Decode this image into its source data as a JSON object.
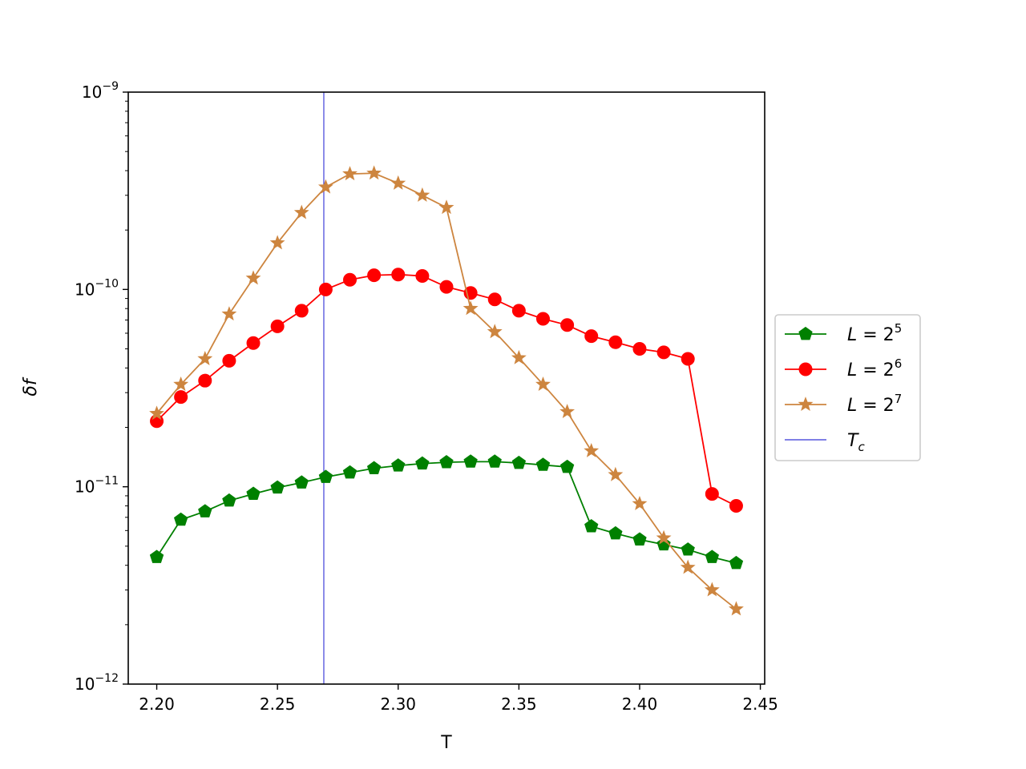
{
  "chart_data": {
    "type": "line",
    "title": "",
    "xlabel": "T",
    "ylabel": "δf",
    "yscale": "log",
    "xlim": [
      2.1882,
      2.4518
    ],
    "ylim": [
      1e-12,
      1e-09
    ],
    "xticks": [
      "2.20",
      "2.25",
      "2.30",
      "2.35",
      "2.40",
      "2.45"
    ],
    "yticks": [
      {
        "base": "10",
        "exp": "−12"
      },
      {
        "base": "10",
        "exp": "−11"
      },
      {
        "base": "10",
        "exp": "−10"
      },
      {
        "base": "10",
        "exp": "−9"
      }
    ],
    "grid": false,
    "legend_position": "center-right-outside",
    "x": [
      2.2,
      2.21,
      2.22,
      2.23,
      2.24,
      2.25,
      2.26,
      2.27,
      2.28,
      2.29,
      2.3,
      2.31,
      2.32,
      2.33,
      2.34,
      2.35,
      2.36,
      2.37,
      2.38,
      2.39,
      2.4,
      2.41,
      2.42,
      2.43,
      2.44
    ],
    "series": [
      {
        "name": "L = 2^5",
        "legend_base": "L = 2",
        "legend_exp": "5",
        "color": "#008000",
        "marker": "pentagon",
        "values": [
          4.4e-12,
          6.8e-12,
          7.5e-12,
          8.5e-12,
          9.2e-12,
          9.9e-12,
          1.05e-11,
          1.12e-11,
          1.18e-11,
          1.24e-11,
          1.28e-11,
          1.31e-11,
          1.33e-11,
          1.34e-11,
          1.34e-11,
          1.32e-11,
          1.29e-11,
          1.26e-11,
          6.3e-12,
          5.8e-12,
          5.4e-12,
          5.1e-12,
          4.8e-12,
          4.4e-12,
          4.1e-12
        ]
      },
      {
        "name": "L = 2^6",
        "legend_base": "L = 2",
        "legend_exp": "6",
        "color": "#ff0000",
        "marker": "circle",
        "values": [
          2.15e-11,
          2.85e-11,
          3.45e-11,
          4.35e-11,
          5.35e-11,
          6.5e-11,
          7.8e-11,
          1e-10,
          1.12e-10,
          1.18e-10,
          1.19e-10,
          1.17e-10,
          1.03e-10,
          9.6e-11,
          8.9e-11,
          7.8e-11,
          7.1e-11,
          6.6e-11,
          5.8e-11,
          5.4e-11,
          5e-11,
          4.8e-11,
          4.45e-11,
          9.2e-12,
          8e-12
        ]
      },
      {
        "name": "L = 2^7",
        "legend_base": "L = 2",
        "legend_exp": "7",
        "color": "#cd853f",
        "marker": "star",
        "values": [
          2.35e-11,
          3.3e-11,
          4.45e-11,
          7.5e-11,
          1.14e-10,
          1.72e-10,
          2.45e-10,
          3.3e-10,
          3.85e-10,
          3.88e-10,
          3.45e-10,
          3e-10,
          2.6e-10,
          8e-11,
          6.1e-11,
          4.5e-11,
          3.3e-11,
          2.4e-11,
          1.52e-11,
          1.15e-11,
          8.2e-12,
          5.5e-12,
          3.9e-12,
          3e-12,
          2.4e-12
        ]
      }
    ],
    "vline": {
      "name": "T_c",
      "legend_base": "T",
      "legend_sub": "c",
      "x": 2.2692,
      "color": "#0000cd"
    }
  }
}
